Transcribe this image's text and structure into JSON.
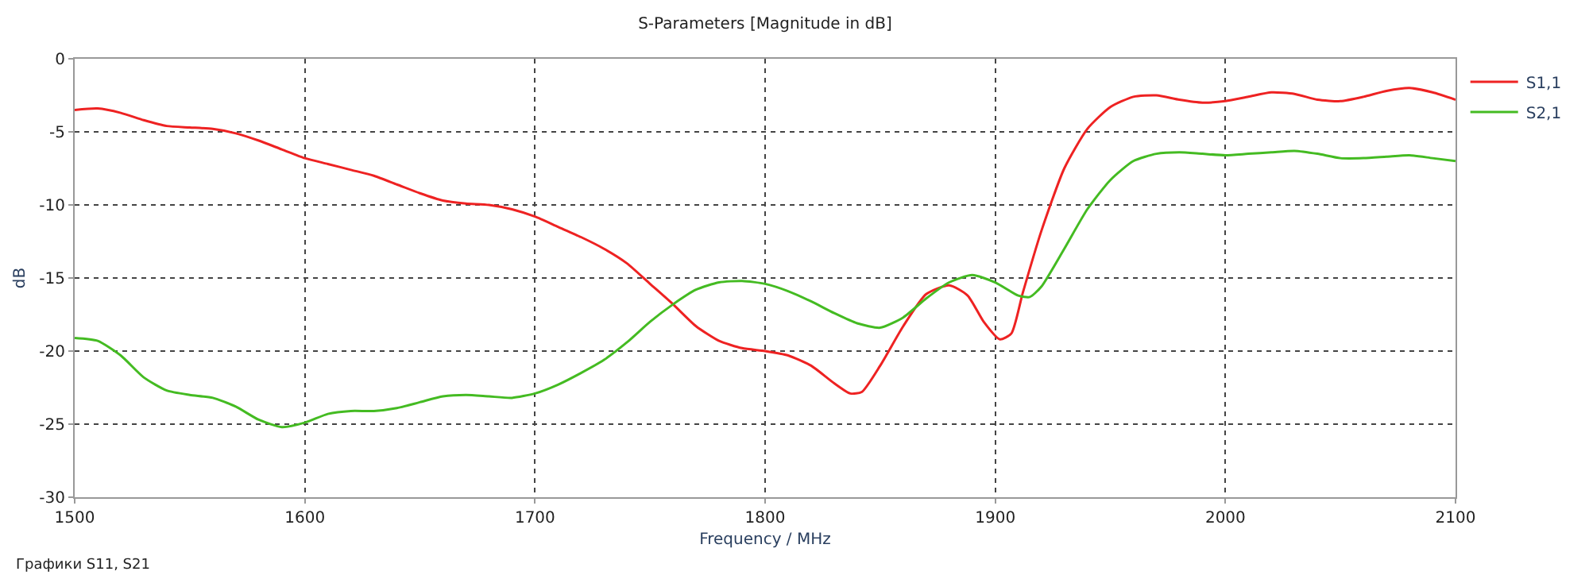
{
  "chart_data": {
    "type": "line",
    "title": "S-Parameters [Magnitude in dB]",
    "xlabel": "Frequency / MHz",
    "ylabel": "dB",
    "annotations": [
      "Графики S11, S21"
    ],
    "xlim": [
      1500,
      2100
    ],
    "xticks": [
      1500,
      1600,
      1700,
      1800,
      1900,
      2000,
      2100
    ],
    "ylim": [
      -30,
      0
    ],
    "yticks": [
      -30,
      -25,
      -20,
      -15,
      -10,
      -5,
      0
    ],
    "grid": true,
    "legend": "top right",
    "marker": "none",
    "line_style": "solid",
    "series": [
      {
        "name": "S1,1",
        "color": "#ee2222",
        "x": [
          1500,
          1510,
          1520,
          1530,
          1540,
          1550,
          1560,
          1570,
          1580,
          1590,
          1600,
          1610,
          1620,
          1630,
          1640,
          1650,
          1660,
          1670,
          1680,
          1690,
          1700,
          1710,
          1720,
          1730,
          1740,
          1750,
          1760,
          1770,
          1780,
          1790,
          1800,
          1810,
          1820,
          1830,
          1837,
          1842,
          1850,
          1860,
          1870,
          1880,
          1888,
          1895,
          1902,
          1907,
          1912,
          1920,
          1930,
          1940,
          1950,
          1960,
          1970,
          1980,
          1990,
          2000,
          2010,
          2020,
          2030,
          2040,
          2050,
          2060,
          2070,
          2080,
          2090,
          2100
        ],
        "values": [
          -3.5,
          -3.4,
          -3.7,
          -4.2,
          -4.6,
          -4.7,
          -4.8,
          -5.1,
          -5.6,
          -6.2,
          -6.8,
          -7.2,
          -7.6,
          -8.0,
          -8.6,
          -9.2,
          -9.7,
          -9.9,
          -10.0,
          -10.3,
          -10.8,
          -11.5,
          -12.2,
          -13.0,
          -14.0,
          -15.4,
          -16.8,
          -18.3,
          -19.3,
          -19.8,
          -20.0,
          -20.3,
          -21.0,
          -22.2,
          -22.9,
          -22.8,
          -21.0,
          -18.3,
          -16.1,
          -15.5,
          -16.2,
          -18.0,
          -19.2,
          -18.8,
          -16.0,
          -11.8,
          -7.5,
          -4.8,
          -3.3,
          -2.6,
          -2.5,
          -2.8,
          -3.0,
          -2.9,
          -2.6,
          -2.3,
          -2.4,
          -2.8,
          -2.9,
          -2.6,
          -2.2,
          -2.0,
          -2.3,
          -2.8
        ]
      },
      {
        "name": "S2,1",
        "color": "#44bb22",
        "x": [
          1500,
          1510,
          1520,
          1530,
          1540,
          1550,
          1560,
          1570,
          1580,
          1590,
          1600,
          1610,
          1620,
          1630,
          1640,
          1650,
          1660,
          1670,
          1680,
          1690,
          1700,
          1710,
          1720,
          1730,
          1740,
          1750,
          1760,
          1770,
          1780,
          1790,
          1800,
          1810,
          1820,
          1830,
          1840,
          1850,
          1860,
          1870,
          1880,
          1890,
          1900,
          1910,
          1915,
          1920,
          1930,
          1940,
          1950,
          1960,
          1970,
          1980,
          1990,
          2000,
          2010,
          2020,
          2030,
          2040,
          2050,
          2060,
          2070,
          2080,
          2090,
          2100
        ],
        "values": [
          -19.1,
          -19.3,
          -20.3,
          -21.8,
          -22.7,
          -23.0,
          -23.2,
          -23.8,
          -24.7,
          -25.2,
          -24.9,
          -24.3,
          -24.1,
          -24.1,
          -23.9,
          -23.5,
          -23.1,
          -23.0,
          -23.1,
          -23.2,
          -22.9,
          -22.3,
          -21.5,
          -20.6,
          -19.4,
          -18.0,
          -16.8,
          -15.8,
          -15.3,
          -15.2,
          -15.4,
          -15.9,
          -16.6,
          -17.4,
          -18.1,
          -18.4,
          -17.7,
          -16.4,
          -15.3,
          -14.8,
          -15.3,
          -16.2,
          -16.3,
          -15.6,
          -13.0,
          -10.3,
          -8.3,
          -7.0,
          -6.5,
          -6.4,
          -6.5,
          -6.6,
          -6.5,
          -6.4,
          -6.3,
          -6.5,
          -6.8,
          -6.8,
          -6.7,
          -6.6,
          -6.8,
          -7.0
        ]
      }
    ]
  }
}
